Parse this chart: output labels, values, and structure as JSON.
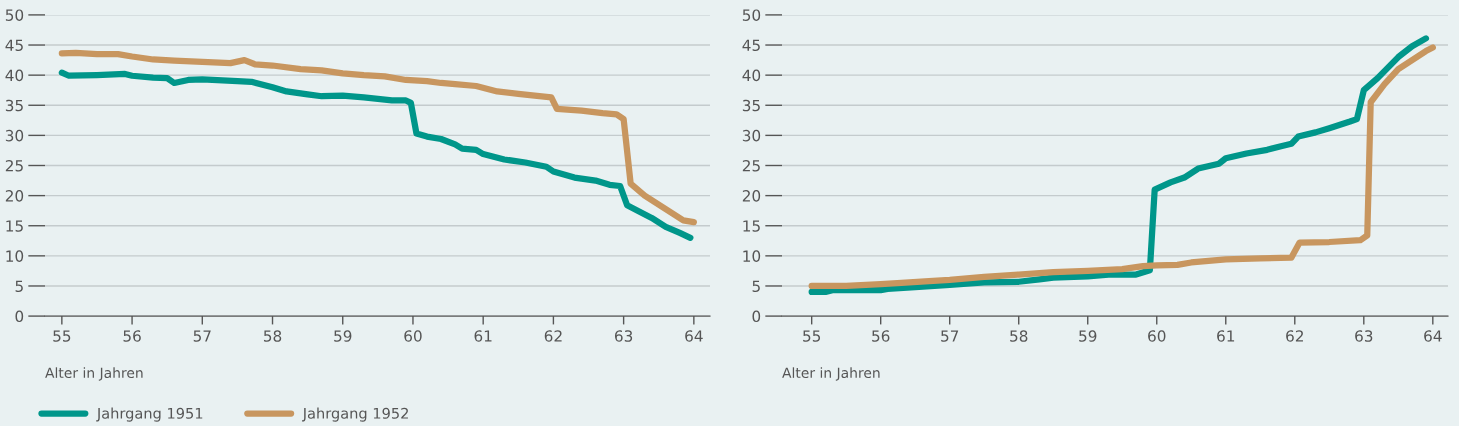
{
  "chart_data": [
    {
      "type": "line",
      "xlabel": "Alter in Jahren",
      "xlim": [
        54.76,
        64.23
      ],
      "xticks": [
        55,
        56,
        57,
        58,
        59,
        60,
        61,
        62,
        63,
        64
      ],
      "ylim": [
        0,
        50
      ],
      "yticks": [
        0,
        5,
        10,
        15,
        20,
        25,
        30,
        35,
        40,
        45,
        50
      ],
      "grid": "y",
      "legend": "bottom left",
      "marker": "none",
      "line_style": "solid",
      "series": [
        {
          "name": "Jahrgang 1951",
          "color": "#00968a",
          "x": [
            55.0,
            55.1,
            55.5,
            55.9,
            56.0,
            56.3,
            56.5,
            56.6,
            56.8,
            57.0,
            57.5,
            57.7,
            58.0,
            58.2,
            58.5,
            58.7,
            59.0,
            59.3,
            59.7,
            59.9,
            59.97,
            60.05,
            60.2,
            60.4,
            60.6,
            60.7,
            60.9,
            61.0,
            61.3,
            61.6,
            61.9,
            62.0,
            62.3,
            62.6,
            62.8,
            62.95,
            63.05,
            63.2,
            63.4,
            63.6,
            63.8,
            63.95
          ],
          "values": [
            40.4,
            39.9,
            40.0,
            40.2,
            39.9,
            39.6,
            39.5,
            38.7,
            39.2,
            39.3,
            39.0,
            38.9,
            38.0,
            37.3,
            36.8,
            36.5,
            36.6,
            36.3,
            35.8,
            35.8,
            35.4,
            30.3,
            29.8,
            29.4,
            28.5,
            27.8,
            27.6,
            26.9,
            26.0,
            25.5,
            24.8,
            24.0,
            23.0,
            22.5,
            21.8,
            21.6,
            18.4,
            17.5,
            16.3,
            14.8,
            13.8,
            13.0
          ]
        },
        {
          "name": "Jahrgang 1952",
          "color": "#c8965f",
          "x": [
            55.0,
            55.2,
            55.5,
            55.8,
            56.0,
            56.3,
            56.6,
            57.0,
            57.4,
            57.6,
            57.75,
            58.0,
            58.4,
            58.7,
            59.0,
            59.3,
            59.6,
            59.9,
            60.2,
            60.4,
            60.6,
            60.9,
            61.2,
            61.5,
            61.8,
            61.97,
            62.05,
            62.4,
            62.7,
            62.9,
            63.0,
            63.1,
            63.3,
            63.5,
            63.7,
            63.85,
            64.0
          ],
          "values": [
            43.6,
            43.7,
            43.5,
            43.5,
            43.1,
            42.6,
            42.4,
            42.2,
            42.0,
            42.5,
            41.8,
            41.6,
            41.0,
            40.8,
            40.3,
            40.0,
            39.8,
            39.2,
            39.0,
            38.7,
            38.5,
            38.2,
            37.3,
            36.9,
            36.5,
            36.3,
            34.4,
            34.1,
            33.7,
            33.5,
            32.7,
            22.0,
            20.0,
            18.5,
            17.0,
            15.9,
            15.6
          ]
        }
      ]
    },
    {
      "type": "line",
      "xlabel": "Alter in Jahren",
      "xlim": [
        54.57,
        64.22
      ],
      "xticks": [
        55,
        56,
        57,
        58,
        59,
        60,
        61,
        62,
        63,
        64
      ],
      "ylim": [
        0,
        50
      ],
      "yticks": [
        0,
        5,
        10,
        15,
        20,
        25,
        30,
        35,
        40,
        45,
        50
      ],
      "grid": "y",
      "marker": "none",
      "line_style": "solid",
      "series": [
        {
          "color": "#00968a",
          "x": [
            55.0,
            55.2,
            55.3,
            56.0,
            56.1,
            56.5,
            57.0,
            57.5,
            58.0,
            58.3,
            58.5,
            59.0,
            59.3,
            59.7,
            59.9,
            59.97,
            60.2,
            60.4,
            60.6,
            60.9,
            61.0,
            61.3,
            61.6,
            61.8,
            61.95,
            62.05,
            62.3,
            62.5,
            62.8,
            62.9,
            63.0,
            63.2,
            63.5,
            63.7,
            63.9
          ],
          "values": [
            4.0,
            4.0,
            4.3,
            4.3,
            4.5,
            4.8,
            5.2,
            5.6,
            5.7,
            6.1,
            6.4,
            6.6,
            6.9,
            6.9,
            7.6,
            21.0,
            22.2,
            23.0,
            24.5,
            25.3,
            26.2,
            27.0,
            27.6,
            28.2,
            28.6,
            29.8,
            30.5,
            31.2,
            32.3,
            32.7,
            37.5,
            39.5,
            43.0,
            44.8,
            46.1
          ]
        },
        {
          "color": "#c8965f",
          "x": [
            55.0,
            55.5,
            56.0,
            56.3,
            56.7,
            57.0,
            57.5,
            58.0,
            58.5,
            59.0,
            59.5,
            59.8,
            60.0,
            60.3,
            60.5,
            61.0,
            61.5,
            61.95,
            62.07,
            62.5,
            62.95,
            63.05,
            63.1,
            63.3,
            63.5,
            63.7,
            63.9,
            64.0
          ],
          "values": [
            5.0,
            5.0,
            5.3,
            5.5,
            5.8,
            6.0,
            6.5,
            6.9,
            7.3,
            7.5,
            7.8,
            8.3,
            8.4,
            8.5,
            8.9,
            9.4,
            9.6,
            9.7,
            12.2,
            12.3,
            12.6,
            13.4,
            35.5,
            38.5,
            41.0,
            42.5,
            44.0,
            44.6
          ]
        }
      ]
    }
  ]
}
